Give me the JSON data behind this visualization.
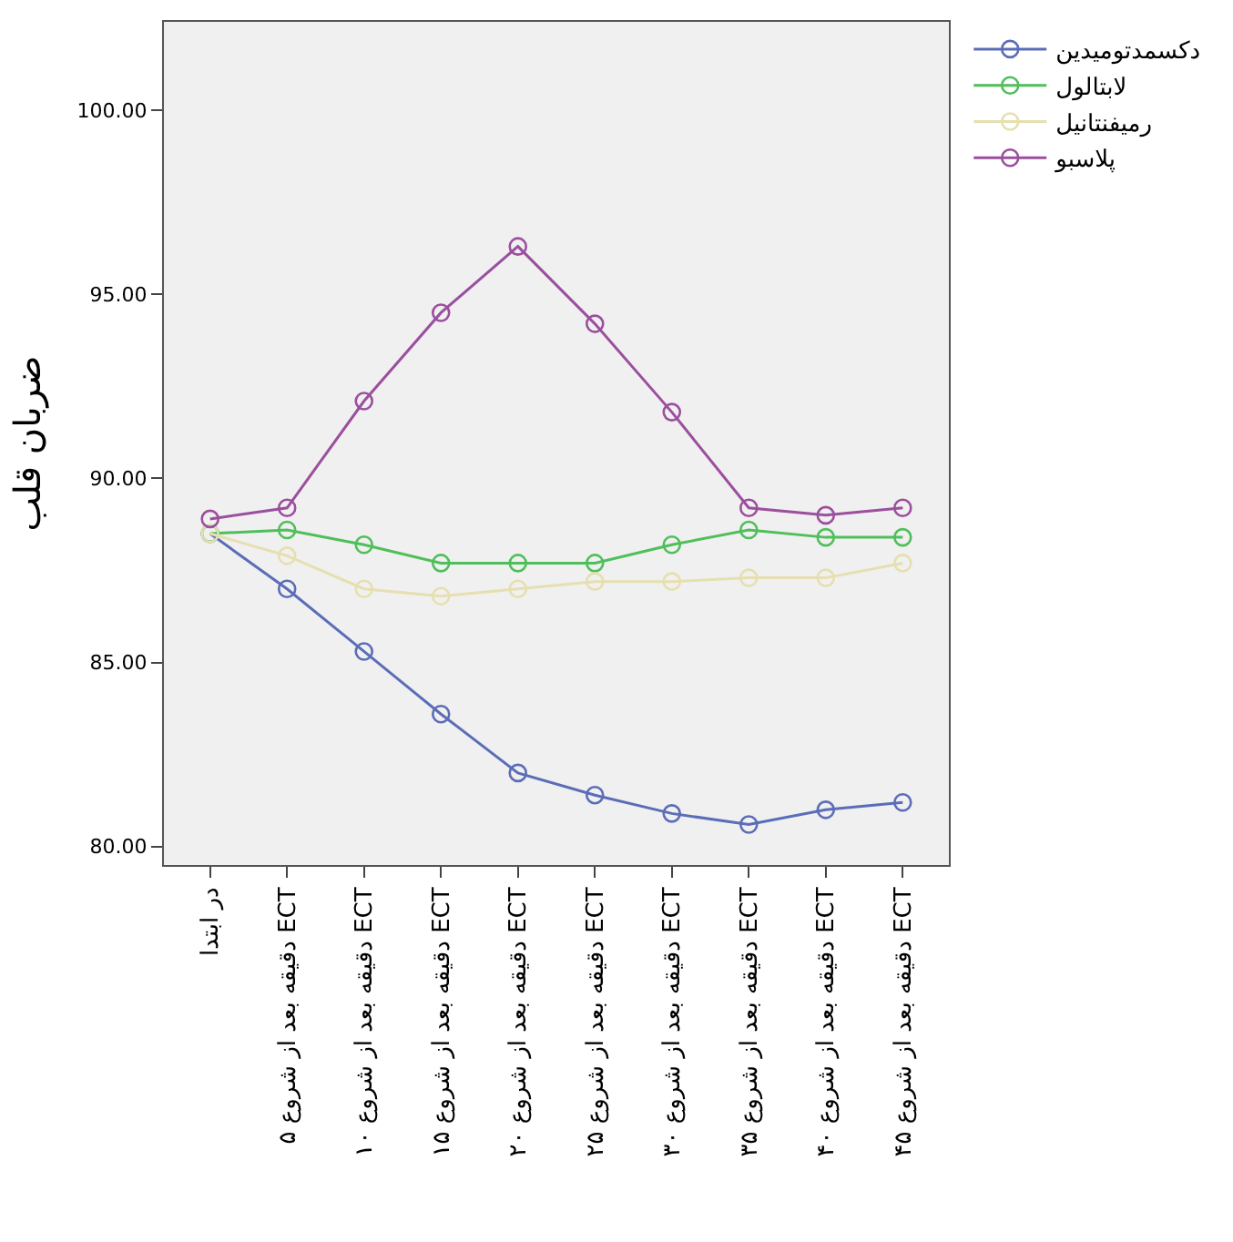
{
  "chart_data": {
    "type": "line",
    "ylabel": "ضربان قلب",
    "categories": [
      "در ابتدا",
      "۵ دقیقه بعد از شروع ECT",
      "۱۰ دقیقه بعد از شروع ECT",
      "۱۵ دقیقه بعد از شروع ECT",
      "۲۰ دقیقه بعد از شروع ECT",
      "۲۵ دقیقه بعد از شروع ECT",
      "۳۰ دقیقه بعد از شروع ECT",
      "۳۵ دقیقه بعد از شروع ECT",
      "۴۰ دقیقه بعد از شروع ECT",
      "۴۵ دقیقه بعد از شروع ECT"
    ],
    "series": [
      {
        "name": "دکسمدتومیدین",
        "color": "#5b6db8",
        "values": [
          88.5,
          87.0,
          85.3,
          83.6,
          82.0,
          81.4,
          80.9,
          80.6,
          81.0,
          81.2
        ]
      },
      {
        "name": "لابتالول",
        "color": "#4fbf5a",
        "values": [
          88.5,
          88.6,
          88.2,
          87.7,
          87.7,
          87.7,
          88.2,
          88.6,
          88.4,
          88.4
        ]
      },
      {
        "name": "رمیفنتانیل",
        "color": "#e6dfb0",
        "values": [
          88.5,
          87.9,
          87.0,
          86.8,
          87.0,
          87.2,
          87.2,
          87.3,
          87.3,
          87.7
        ]
      },
      {
        "name": "پلاسبو",
        "color": "#9b4f9e",
        "values": [
          88.9,
          89.2,
          92.1,
          94.5,
          96.3,
          94.2,
          91.8,
          89.2,
          89.0,
          89.2
        ]
      }
    ],
    "ylim": [
      79.5,
      102.4
    ],
    "yticks": [
      {
        "value": 80,
        "label": "80.00"
      },
      {
        "value": 85,
        "label": "85.00"
      },
      {
        "value": 90,
        "label": "90.00"
      },
      {
        "value": 95,
        "label": "95.00"
      },
      {
        "value": 100,
        "label": "100.00"
      }
    ],
    "grid": false,
    "legend": "top right",
    "marker": "circle",
    "line_style": "solid"
  }
}
